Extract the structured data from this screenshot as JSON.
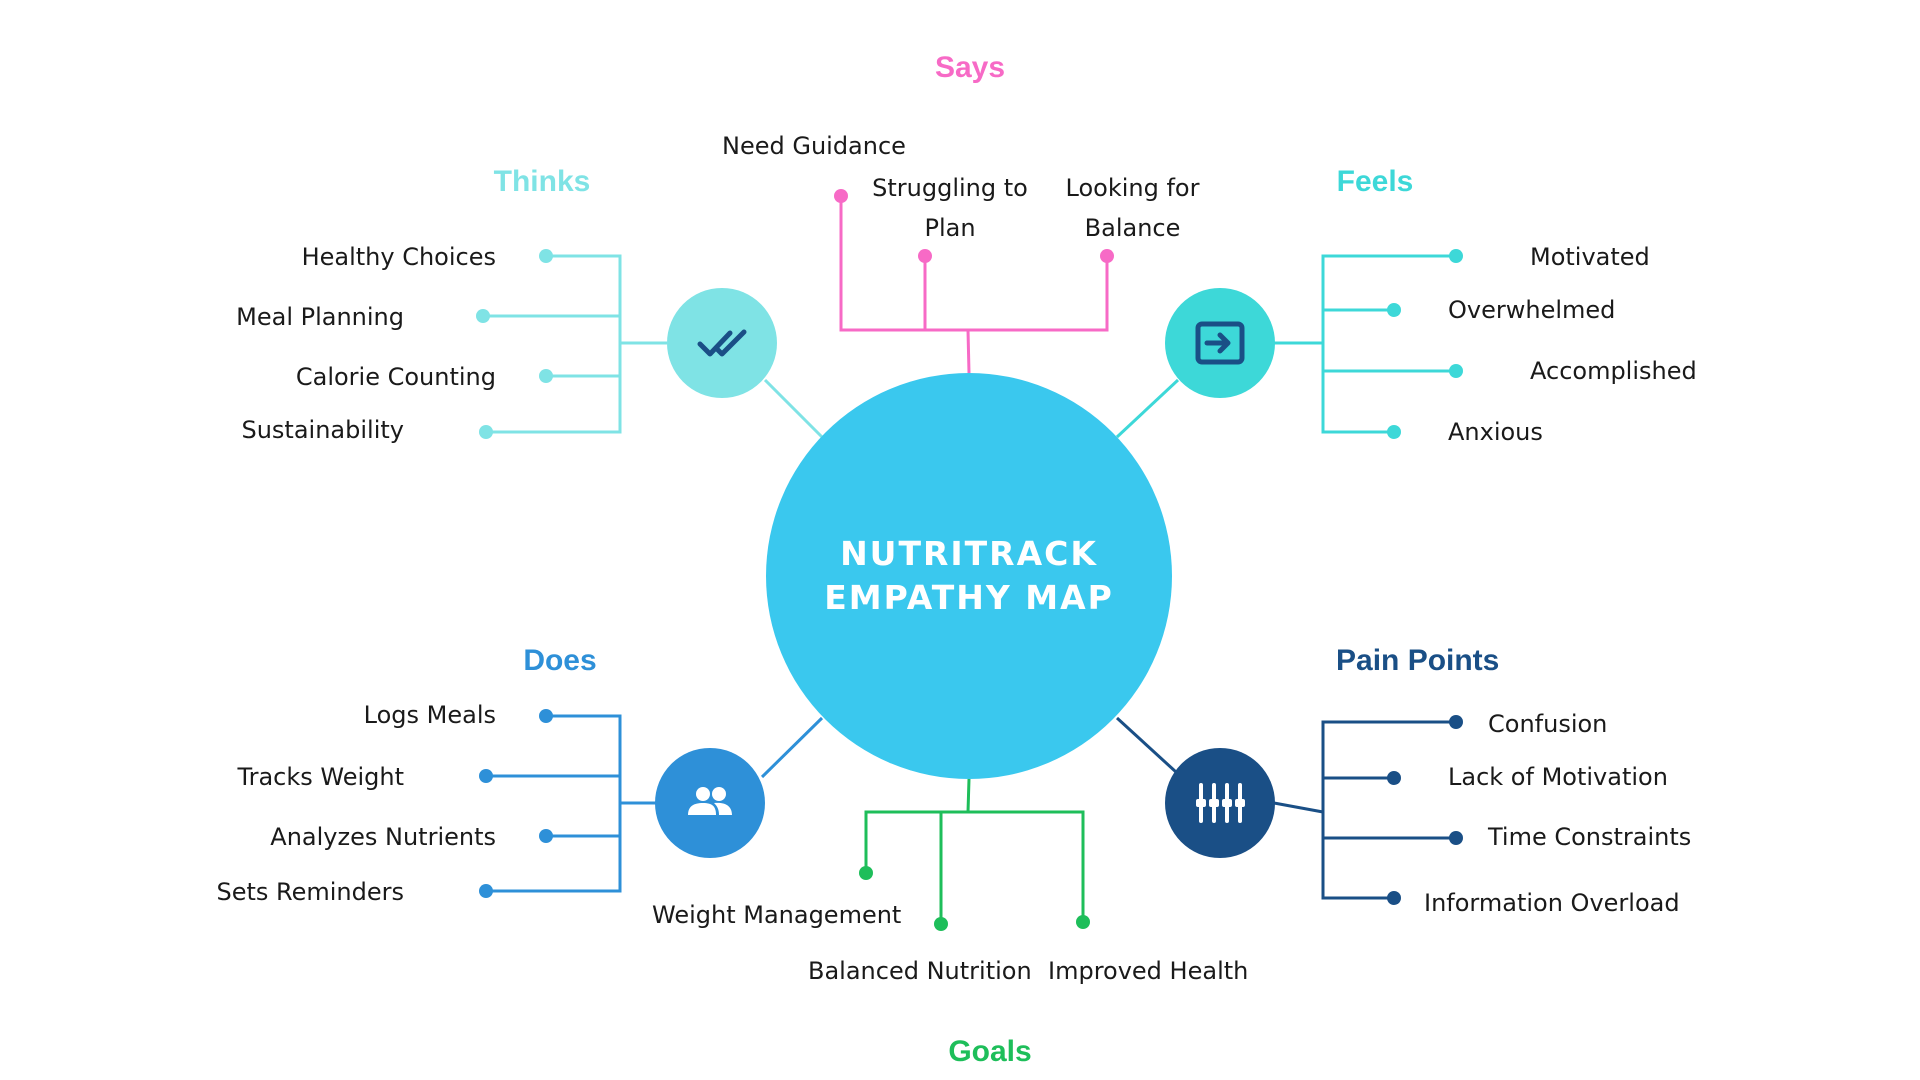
{
  "title": "NUTRITRACK EMPATHY MAP",
  "title_lines": [
    "NUTRITRACK",
    "EMPATHY MAP"
  ],
  "colors": {
    "center": "#3AC8EE",
    "thinks": "#7FE3E5",
    "feels": "#3DD8D8",
    "says": "#F76AC6",
    "does": "#2E90D8",
    "pain_points": "#1A4F86",
    "goals": "#1EBE5A"
  },
  "sections": {
    "says": {
      "label": "Says",
      "items": [
        "Need Guidance",
        "Struggling to Plan",
        "Looking for Balance"
      ]
    },
    "thinks": {
      "label": "Thinks",
      "icon": "double-check-icon",
      "items": [
        "Healthy Choices",
        "Meal Planning",
        "Calorie Counting",
        "Sustainability"
      ]
    },
    "feels": {
      "label": "Feels",
      "icon": "input-arrow-icon",
      "items": [
        "Motivated",
        "Overwhelmed",
        "Accomplished",
        "Anxious"
      ]
    },
    "does": {
      "label": "Does",
      "icon": "people-icon",
      "items": [
        "Logs Meals",
        "Tracks Weight",
        "Analyzes Nutrients",
        "Sets Reminders"
      ]
    },
    "pain_points": {
      "label": "Pain Points",
      "icon": "sliders-icon",
      "items": [
        "Confusion",
        "Lack of Motivation",
        "Time Constraints",
        "Information Overload"
      ]
    },
    "goals": {
      "label": "Goals",
      "items": [
        "Weight Management",
        "Balanced Nutrition",
        "Improved Health"
      ]
    }
  }
}
